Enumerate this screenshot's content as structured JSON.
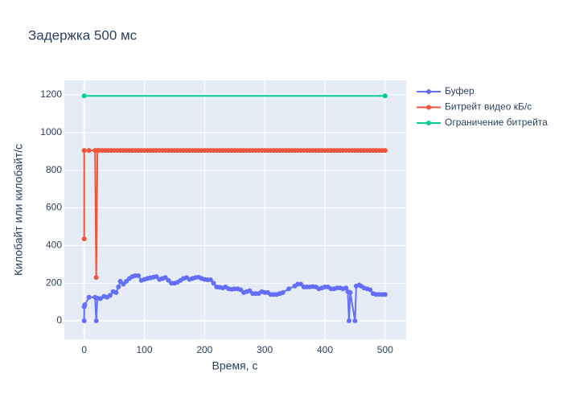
{
  "chart_data": {
    "type": "line",
    "title": "Задержка 500 мс",
    "x_label": "Время, с",
    "y_label": "Килобайт или килобайт/с",
    "xlim": [
      -33,
      535
    ],
    "ylim": [
      -98,
      1277
    ],
    "xticks": [
      0,
      100,
      200,
      300,
      400,
      500
    ],
    "yticks": [
      0,
      200,
      400,
      600,
      800,
      1000,
      1200
    ],
    "grid": true,
    "legend": "right",
    "series": [
      {
        "name": "Буфер",
        "color": "#636efa",
        "x": [
          0,
          0,
          1,
          8,
          18,
          20,
          22,
          27,
          33,
          38,
          43,
          48,
          53,
          57,
          60,
          65,
          70,
          75,
          80,
          85,
          90,
          95,
          100,
          105,
          110,
          115,
          120,
          125,
          130,
          135,
          140,
          145,
          150,
          155,
          160,
          165,
          170,
          175,
          180,
          185,
          190,
          195,
          200,
          205,
          210,
          215,
          220,
          225,
          230,
          235,
          240,
          245,
          250,
          255,
          260,
          265,
          270,
          275,
          280,
          285,
          290,
          295,
          300,
          305,
          310,
          315,
          320,
          325,
          330,
          340,
          350,
          355,
          360,
          365,
          370,
          375,
          380,
          385,
          390,
          395,
          400,
          405,
          410,
          415,
          420,
          425,
          430,
          435,
          438,
          440,
          442,
          450,
          452,
          457,
          460,
          465,
          470,
          475,
          480,
          485,
          490,
          495,
          500
        ],
        "values": [
          0,
          75,
          85,
          125,
          125,
          0,
          120,
          118,
          130,
          125,
          135,
          155,
          150,
          180,
          210,
          195,
          210,
          225,
          235,
          240,
          240,
          215,
          220,
          225,
          228,
          232,
          235,
          220,
          225,
          230,
          215,
          200,
          200,
          205,
          215,
          225,
          230,
          220,
          225,
          230,
          232,
          225,
          220,
          218,
          218,
          200,
          180,
          178,
          175,
          180,
          170,
          168,
          170,
          170,
          165,
          150,
          155,
          160,
          145,
          145,
          145,
          155,
          150,
          150,
          140,
          140,
          140,
          145,
          150,
          170,
          185,
          195,
          195,
          180,
          180,
          180,
          182,
          180,
          170,
          175,
          180,
          180,
          170,
          170,
          175,
          175,
          170,
          175,
          155,
          0,
          150,
          0,
          185,
          190,
          185,
          175,
          170,
          165,
          145,
          140,
          140,
          140,
          140
        ]
      },
      {
        "name": "Битрейт видео кБ/с",
        "color": "#EF553B",
        "x": [
          0,
          0,
          8,
          18,
          20,
          22,
          25,
          30,
          35,
          40,
          45,
          50,
          55,
          60,
          65,
          70,
          75,
          80,
          85,
          90,
          95,
          100,
          105,
          110,
          115,
          120,
          125,
          130,
          135,
          140,
          145,
          150,
          155,
          160,
          165,
          170,
          175,
          180,
          185,
          190,
          195,
          200,
          205,
          210,
          215,
          220,
          225,
          230,
          235,
          240,
          245,
          250,
          255,
          260,
          265,
          270,
          275,
          280,
          285,
          290,
          295,
          300,
          305,
          310,
          315,
          320,
          325,
          330,
          335,
          340,
          345,
          350,
          355,
          360,
          365,
          370,
          375,
          380,
          385,
          390,
          395,
          400,
          405,
          410,
          415,
          420,
          425,
          430,
          435,
          440,
          445,
          450,
          455,
          460,
          465,
          470,
          475,
          480,
          485,
          490,
          495,
          500
        ],
        "values": [
          435,
          905,
          905,
          905,
          230,
          905,
          905,
          905,
          905,
          905,
          905,
          905,
          905,
          905,
          905,
          905,
          905,
          905,
          905,
          905,
          905,
          905,
          905,
          905,
          905,
          905,
          905,
          905,
          905,
          905,
          905,
          905,
          905,
          905,
          905,
          905,
          905,
          905,
          905,
          905,
          905,
          905,
          905,
          905,
          905,
          905,
          905,
          905,
          905,
          905,
          905,
          905,
          905,
          905,
          905,
          905,
          905,
          905,
          905,
          905,
          905,
          905,
          905,
          905,
          905,
          905,
          905,
          905,
          905,
          905,
          905,
          905,
          905,
          905,
          905,
          905,
          905,
          905,
          905,
          905,
          905,
          905,
          905,
          905,
          905,
          905,
          905,
          905,
          905,
          905,
          905,
          905,
          905,
          905,
          905,
          905,
          905,
          905,
          905,
          905,
          905,
          905
        ]
      },
      {
        "name": "Ограничение битрейта",
        "color": "#00cc96",
        "x": [
          0,
          500
        ],
        "values": [
          1195,
          1195
        ]
      }
    ]
  }
}
